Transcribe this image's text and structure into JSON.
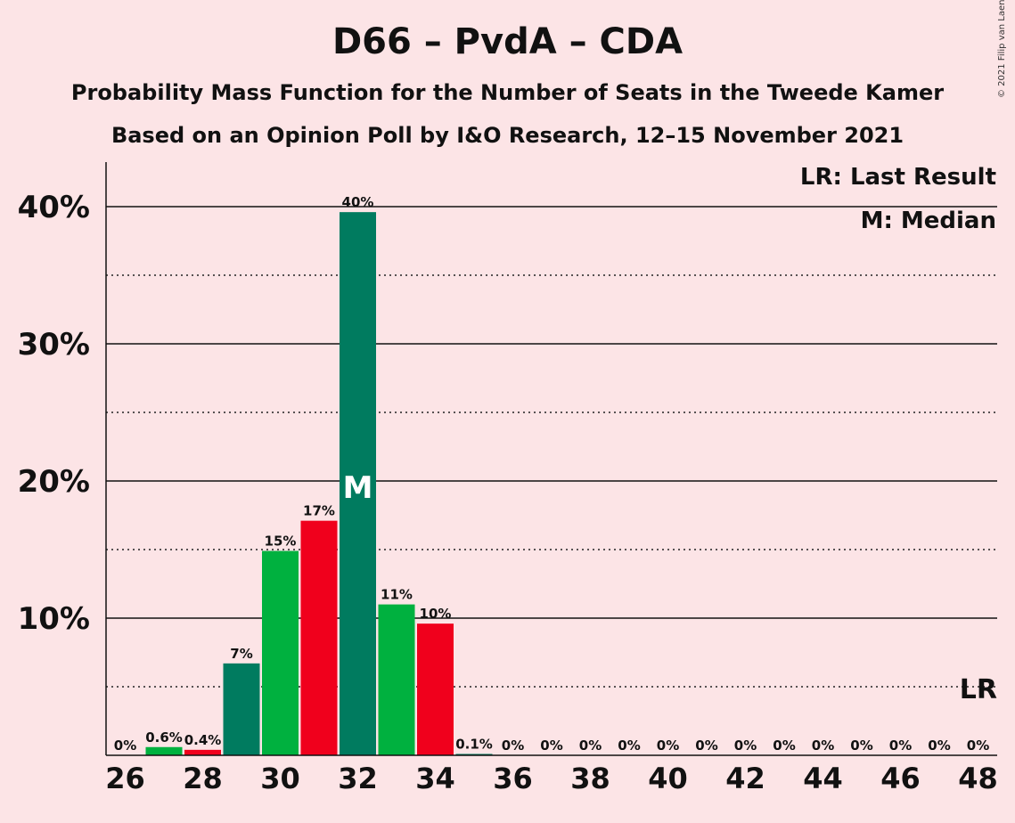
{
  "chart_data": {
    "type": "bar",
    "title": "D66 – PvdA – CDA",
    "subtitles": [
      "Probability Mass Function for the Number of Seats in the Tweede Kamer",
      "Based on an Opinion Poll by I&O Research, 12–15 November 2021"
    ],
    "copyright": "© 2021 Filip van Laenen",
    "legend": {
      "lr": "LR: Last Result",
      "m": "M: Median",
      "placement": "top-right"
    },
    "x": [
      26,
      27,
      28,
      29,
      30,
      31,
      32,
      33,
      34,
      35,
      36,
      37,
      38,
      39,
      40,
      41,
      42,
      43,
      44,
      45,
      46,
      47,
      48
    ],
    "values": [
      0,
      0.6,
      0.4,
      6.7,
      14.9,
      17.1,
      39.6,
      11.0,
      9.6,
      0.1,
      0,
      0,
      0,
      0,
      0,
      0,
      0,
      0,
      0,
      0,
      0,
      0,
      0
    ],
    "bar_labels": [
      "0%",
      "0.6%",
      "0.4%",
      "7%",
      "15%",
      "17%",
      "40%",
      "11%",
      "10%",
      "0.1%",
      "0%",
      "0%",
      "0%",
      "0%",
      "0%",
      "0%",
      "0%",
      "0%",
      "0%",
      "0%",
      "0%",
      "0%",
      "0%"
    ],
    "bar_colors": [
      "#00b13f",
      "#00b13f",
      "#f0001c",
      "#007b5f",
      "#00b13f",
      "#f0001c",
      "#007b5f",
      "#00b13f",
      "#f0001c",
      "#007b5f",
      "#00b13f",
      "#f0001c",
      "#007b5f",
      "#00b13f",
      "#f0001c",
      "#007b5f",
      "#00b13f",
      "#f0001c",
      "#007b5f",
      "#00b13f",
      "#f0001c",
      "#007b5f",
      "#00b13f"
    ],
    "x_ticks": [
      26,
      28,
      30,
      32,
      34,
      36,
      38,
      40,
      42,
      44,
      46,
      48
    ],
    "x_tick_labels": [
      "26",
      "28",
      "30",
      "32",
      "34",
      "36",
      "38",
      "40",
      "42",
      "44",
      "46",
      "48"
    ],
    "y_ticks": [
      10,
      20,
      30,
      40
    ],
    "y_tick_labels": [
      "10%",
      "20%",
      "30%",
      "40%"
    ],
    "y_dotted_gridlines": [
      5,
      15,
      25,
      35
    ],
    "ylim": [
      0,
      43
    ],
    "median_seat": 32,
    "median_label": "M",
    "last_result_seat": 48,
    "last_result_label": "LR",
    "last_result_level": 5,
    "grid": true
  }
}
